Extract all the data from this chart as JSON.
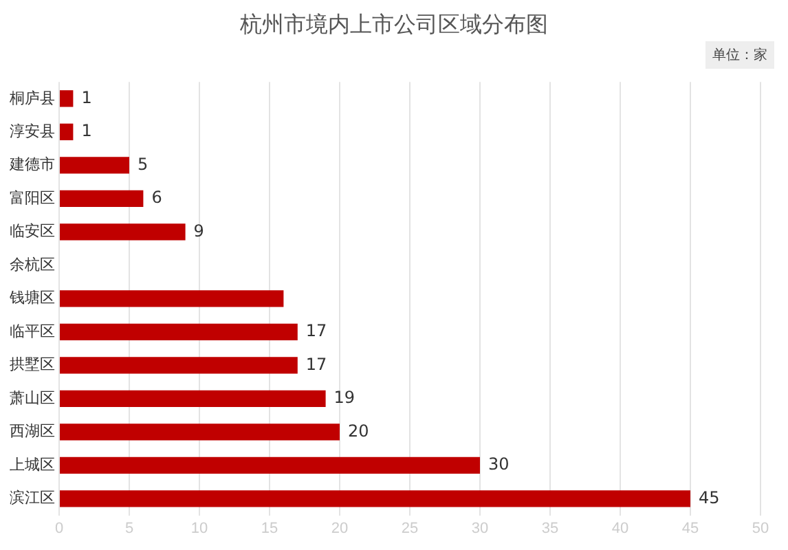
{
  "chart_data": {
    "type": "bar",
    "orientation": "horizontal",
    "title": "杭州市境内上市公司区域分布图",
    "annotations": [
      "单位：家"
    ],
    "categories": [
      "桐庐县",
      "淳安县",
      "建德市",
      "富阳区",
      "临安区",
      "余杭区",
      "钱塘区",
      "临平区",
      "拱墅区",
      "萧山区",
      "西湖区",
      "上城区",
      "滨江区"
    ],
    "values": [
      1,
      1,
      5,
      6,
      9,
      null,
      16,
      17,
      17,
      19,
      20,
      30,
      45
    ],
    "value_labels": [
      "1",
      "1",
      "5",
      "6",
      "9",
      null,
      null,
      "17",
      "17",
      "19",
      "20",
      "30",
      "45"
    ],
    "color": "#c00000",
    "xlim": [
      0,
      50
    ],
    "xticks": [
      0,
      5,
      10,
      15,
      20,
      25,
      30,
      35,
      40,
      45,
      50
    ],
    "grid": "x",
    "legend": false
  }
}
